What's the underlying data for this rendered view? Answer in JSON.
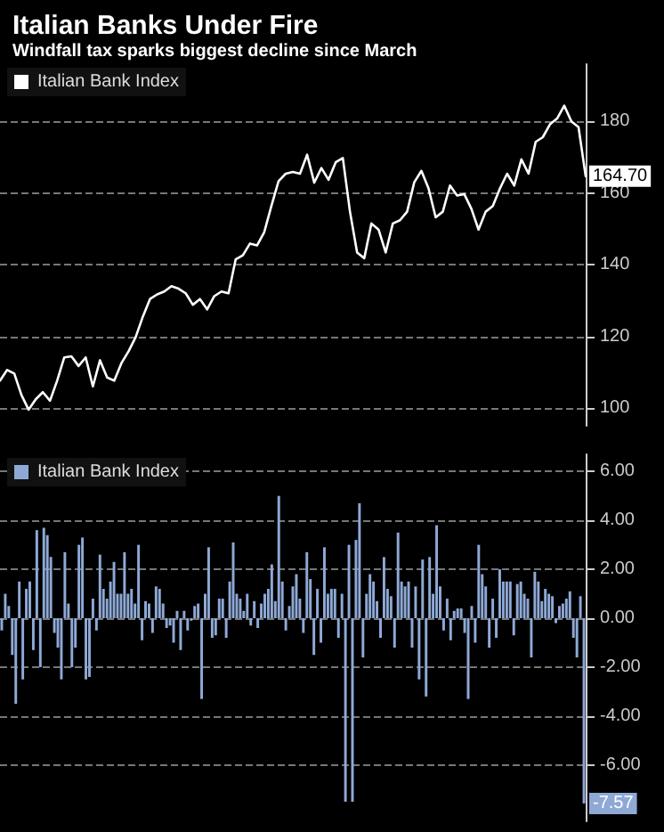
{
  "chart_data": [
    {
      "type": "line",
      "title": "Italian Banks Under Fire",
      "subtitle": "Windfall tax sparks biggest decline since March",
      "categories": [
        null,
        null,
        null,
        null,
        null,
        null,
        null,
        null,
        null,
        null,
        null,
        null,
        null,
        null,
        null,
        null,
        null,
        null,
        null,
        null,
        null,
        null,
        null,
        null,
        null,
        null,
        null,
        null,
        null,
        null,
        null,
        null,
        null,
        null,
        null,
        null,
        null,
        null,
        null,
        null,
        null,
        null,
        null,
        null,
        null,
        null,
        null,
        null,
        null,
        null,
        null,
        null,
        null,
        null,
        null,
        null,
        null,
        null,
        null,
        null,
        null,
        null,
        null,
        null,
        null,
        null,
        null,
        null,
        null,
        null,
        null,
        null,
        null,
        null,
        null,
        null,
        null,
        null,
        null,
        null,
        null,
        null,
        null
      ],
      "series": [
        {
          "name": "Italian Bank Index",
          "color": "#ffffff",
          "values": [
            107.6,
            110.6,
            109.6,
            103.6,
            99.5,
            102.4,
            104.4,
            102,
            107.6,
            114.1,
            114.4,
            111.7,
            114.1,
            106,
            113.3,
            108.5,
            107.6,
            112.5,
            115.8,
            119.8,
            125.5,
            130.4,
            131.7,
            132.5,
            134,
            133.3,
            132,
            128.8,
            130.4,
            127.5,
            131.2,
            132.5,
            132,
            141.5,
            142.6,
            145.9,
            145.4,
            149.1,
            156.4,
            163.3,
            165.4,
            165.9,
            165.4,
            170.7,
            162.9,
            167,
            163.7,
            168.6,
            169.8,
            154.8,
            143.4,
            141.8,
            151.5,
            149.8,
            143.4,
            151.5,
            152.4,
            154.8,
            163,
            166.2,
            161.3,
            153.2,
            154.8,
            162.1,
            159.3,
            159.7,
            155.6,
            149.8,
            154.8,
            156.4,
            161.3,
            165.4,
            162.1,
            169.4,
            165.4,
            174.3,
            175.6,
            179.2,
            180.8,
            184.4,
            180,
            178.4,
            164.7
          ]
        }
      ],
      "ylim": [
        95,
        196
      ],
      "yticks": [
        100,
        120,
        140,
        160,
        180
      ],
      "grid": "y",
      "legend": "top left",
      "tick_labels": "y",
      "line_style": "solid",
      "annotations": [
        {
          "text": "164.70",
          "y": 164.7
        }
      ]
    },
    {
      "type": "bar",
      "categories": [
        null,
        null,
        null,
        null,
        null,
        null,
        null,
        null,
        null,
        null,
        null,
        null,
        null,
        null,
        null,
        null,
        null,
        null,
        null,
        null,
        null,
        null,
        null,
        null,
        null,
        null,
        null,
        null,
        null,
        null,
        null,
        null,
        null,
        null,
        null,
        null,
        null,
        null,
        null,
        null,
        null,
        null,
        null,
        null,
        null,
        null,
        null,
        null,
        null,
        null,
        null,
        null,
        null,
        null,
        null,
        null,
        null,
        null,
        null,
        null,
        null,
        null,
        null,
        null,
        null,
        null,
        null,
        null,
        null,
        null,
        null,
        null,
        null,
        null,
        null,
        null,
        null,
        null,
        null,
        null,
        null,
        null,
        null,
        null,
        null,
        null,
        null,
        null,
        null,
        null,
        null,
        null,
        null,
        null,
        null,
        null,
        null,
        null,
        null,
        null,
        null,
        null,
        null,
        null,
        null,
        null,
        null,
        null,
        null,
        null,
        null,
        null,
        null,
        null,
        null,
        null,
        null,
        null,
        null,
        null,
        null,
        null,
        null,
        null,
        null,
        null,
        null,
        null,
        null,
        null,
        null,
        null,
        null,
        null,
        null,
        null,
        null,
        null,
        null,
        null,
        null,
        null,
        null,
        null,
        null,
        null,
        null,
        null,
        null,
        null,
        null,
        null,
        null,
        null,
        null,
        null,
        null,
        null,
        null,
        null,
        null,
        null,
        null,
        null,
        null,
        null,
        null
      ],
      "series": [
        {
          "name": "Italian Bank Index",
          "color": "#8ea9d6",
          "values": [
            -0.5,
            1.0,
            0.5,
            -1.5,
            -3.5,
            1.5,
            -2.5,
            1.2,
            1.5,
            -1.3,
            3.6,
            -2,
            3.7,
            3.4,
            2.5,
            -0.6,
            -1.2,
            -2.5,
            2.7,
            0.6,
            -2.0,
            -1.2,
            3.0,
            3.3,
            -2.5,
            -2.4,
            0.8,
            -0.5,
            2.6,
            1.2,
            0.8,
            1.5,
            2.3,
            1.0,
            1.0,
            2.7,
            1.0,
            1.2,
            0.6,
            3.0,
            -0.9,
            0.7,
            0.6,
            -0.6,
            1.3,
            1.2,
            0.6,
            -0.4,
            -0.3,
            -1.0,
            0.3,
            -1.3,
            0.3,
            -0.5,
            -0.1,
            0.5,
            0.6,
            -3.3,
            1.0,
            2.9,
            -0.8,
            -0.7,
            0.8,
            0.8,
            -0.8,
            1.5,
            3.1,
            1.0,
            0.8,
            0.3,
            1.0,
            -0.3,
            0.7,
            -0.4,
            0.6,
            1.0,
            1.2,
            2.2,
            0.7,
            5.0,
            1.5,
            -0.5,
            0.5,
            1.3,
            1.8,
            0.8,
            -0.6,
            2.7,
            1.6,
            -1.5,
            1.2,
            -1.0,
            2.9,
            1.0,
            1.2,
            1.2,
            -0.8,
            1.0,
            -7.5,
            3.0,
            -7.5,
            3.2,
            4.7,
            -1.6,
            1.0,
            1.8,
            1.5,
            0.7,
            -0.8,
            2.5,
            1.2,
            0.9,
            -1.2,
            3.5,
            1.5,
            1.3,
            1.5,
            -1.2,
            1.3,
            -2.5,
            2.4,
            -3.2,
            2.5,
            1.0,
            3.8,
            1.3,
            -0.5,
            0.8,
            -0.9,
            0.3,
            0.4,
            0.4,
            -0.6,
            -3.3,
            0.5,
            -1.0,
            3.0,
            1.8,
            1.3,
            -1.2,
            0.8,
            -0.8,
            2.0,
            1.5,
            1.5,
            1.5,
            -0.7,
            1.4,
            1.5,
            1.0,
            0.8,
            -1.6,
            1.9,
            1.5,
            0.7,
            1.2,
            1.0,
            0.9,
            -0.2,
            0.5,
            0.6,
            0.8,
            1.1,
            -0.8,
            -1.6,
            0.9,
            -7.57
          ]
        }
      ],
      "ylim": [
        -8.3,
        6.7
      ],
      "yticks": [
        {
          "value": -6,
          "label": "-6.00"
        },
        {
          "value": -4,
          "label": "-4.00"
        },
        {
          "value": -2,
          "label": "-2.00"
        },
        {
          "value": 0,
          "label": "0.00"
        },
        {
          "value": 2,
          "label": "2.00"
        },
        {
          "value": 4,
          "label": "4.00"
        },
        {
          "value": 6,
          "label": "6.00"
        }
      ],
      "grid": "y",
      "legend": "top left",
      "tick_labels": "y",
      "annotations": [
        {
          "text": "-7.57",
          "y": -7.57
        }
      ]
    }
  ]
}
